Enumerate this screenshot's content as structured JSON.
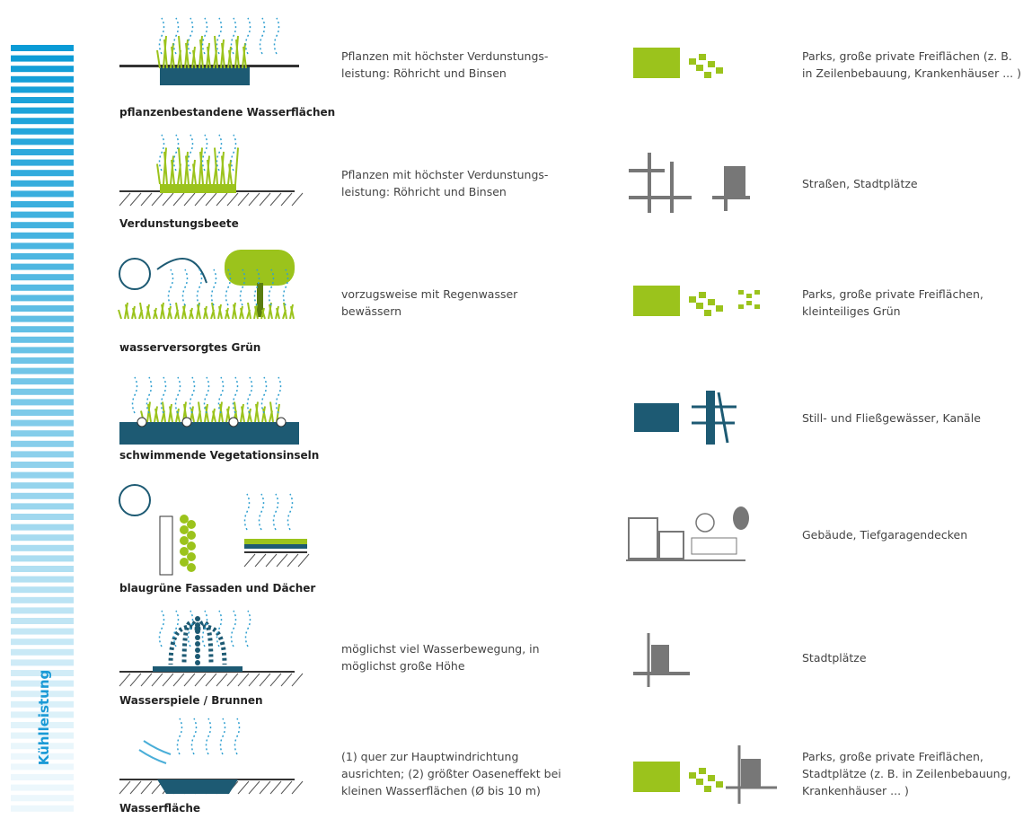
{
  "axis_label": "Kühlleistung",
  "rows": [
    {
      "label": "pflanzenbestandene Wasserflächen",
      "description": [
        "Pflanzen mit höchster Verdunstungs-",
        "leistung: Röhricht und Binsen"
      ],
      "usage": [
        "Parks, große private Freiflächen (z. B.",
        "in Zeilenbebauung, Krankenhäuser ... )"
      ]
    },
    {
      "label": "Verdunstungsbeete",
      "description": [
        "Pflanzen mit höchster Verdunstungs-",
        "leistung: Röhricht und Binsen"
      ],
      "usage": [
        "Straßen, Stadtplätze"
      ]
    },
    {
      "label": "wasserversorgtes Grün",
      "description": [
        "vorzugsweise mit Regenwasser",
        "bewässern"
      ],
      "usage": [
        "Parks, große private Freiflächen,",
        "kleinteiliges Grün"
      ]
    },
    {
      "label": "schwimmende Vegetationsinseln",
      "usage": [
        "Still- und Fließgewässer, Kanäle"
      ]
    },
    {
      "label": "blaugrüne Fassaden und Dächer",
      "usage": [
        "Gebäude, Tiefgaragendecken"
      ]
    },
    {
      "label": "Wasserspiele / Brunnen",
      "description": [
        "möglichst viel Wasserbewegung, in",
        "möglichst große Höhe"
      ],
      "usage": [
        "Stadtplätze"
      ]
    },
    {
      "label": "Wasserfläche",
      "description": [
        "(1) quer zur Hauptwindrichtung",
        "ausrichten; (2) größter Oaseneffekt bei",
        "kleinen Wasserflächen (Ø bis 10 m)"
      ],
      "usage": [
        "Parks, große private Freiflächen,",
        "Stadtplätze (z. B. in Zeilenbebauung,",
        "Krankenhäuser ... )"
      ]
    }
  ]
}
